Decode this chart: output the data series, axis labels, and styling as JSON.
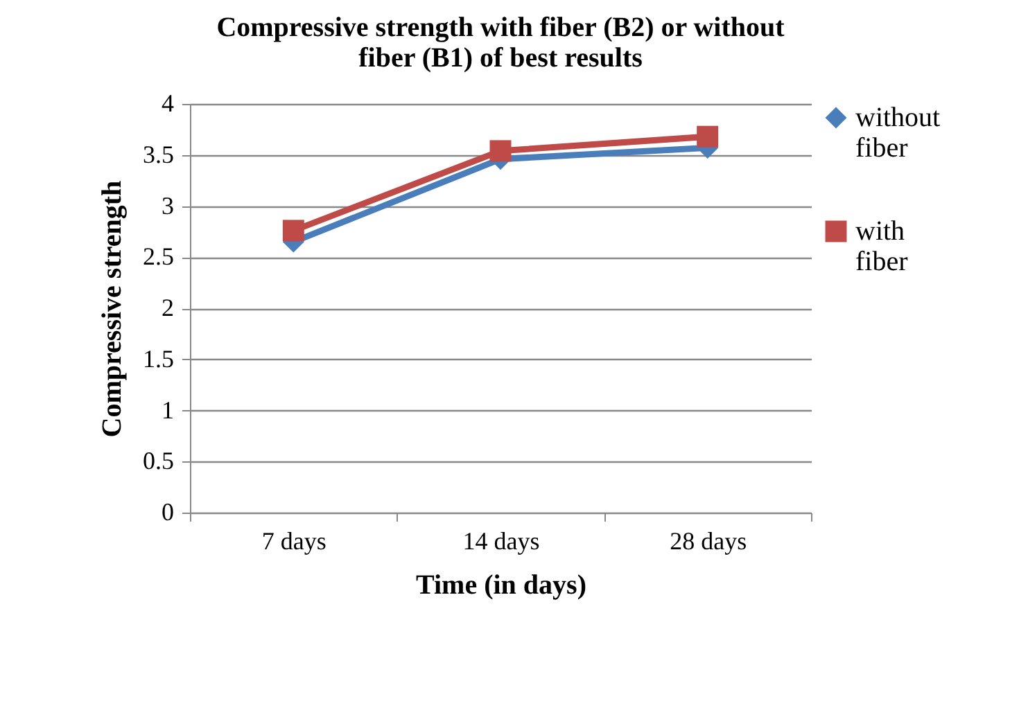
{
  "chart_data": {
    "type": "line",
    "title": [
      "Compressive strength with fiber (B2) or without",
      "fiber (B1) of best results"
    ],
    "xlabel": "Time (in days)",
    "ylabel": "Compressive strength",
    "categories": [
      "7 days",
      "14 days",
      "28 days"
    ],
    "series": [
      {
        "name": "without fiber",
        "color": "#4a7ebb",
        "values": [
          2.65,
          3.46,
          3.57
        ],
        "marker": "diamond"
      },
      {
        "name": "with fiber",
        "color": "#be4b48",
        "values": [
          2.76,
          3.54,
          3.68
        ],
        "marker": "square"
      }
    ],
    "ylim": [
      0,
      4
    ],
    "yticks": [
      0,
      0.5,
      1,
      1.5,
      2,
      2.5,
      3,
      3.5,
      4
    ],
    "grid": "y",
    "legend": "right",
    "line_style": "solid"
  }
}
